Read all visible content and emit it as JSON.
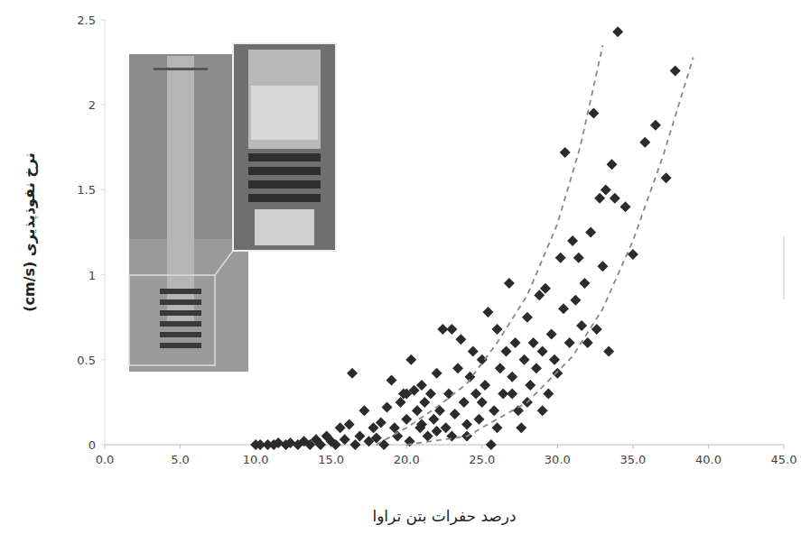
{
  "chart_data": {
    "type": "scatter",
    "x_label": "درصد حفرات بتن تراوا",
    "y_label": "نرخ نفوذپذیری (cm/s)",
    "xlim": [
      0,
      45
    ],
    "ylim": [
      0,
      2.5
    ],
    "xticks": [
      {
        "value": 0,
        "label": "0.0"
      },
      {
        "value": 5,
        "label": "5.0"
      },
      {
        "value": 10,
        "label": "10.0"
      },
      {
        "value": 15,
        "label": "15.0"
      },
      {
        "value": 20,
        "label": "20.0"
      },
      {
        "value": 25,
        "label": "25.0"
      },
      {
        "value": 30,
        "label": "30.0"
      },
      {
        "value": 35,
        "label": "35.0"
      },
      {
        "value": 40,
        "label": "40.0"
      },
      {
        "value": 45,
        "label": "45.0"
      }
    ],
    "yticks": [
      0,
      0.5,
      1,
      1.5,
      2,
      2.5
    ],
    "grid": false,
    "series": [
      {
        "type": "scatter",
        "marker": "diamond",
        "color": "#2b2b2b",
        "x": [
          10,
          10.3,
          10.8,
          11.2,
          11.5,
          12,
          12.3,
          12.8,
          13.2,
          13.6,
          14,
          14.3,
          14.7,
          15,
          15.3,
          15.6,
          15.9,
          16.2,
          16.4,
          16.6,
          16.9,
          17.2,
          17.5,
          17.8,
          18,
          18.3,
          18.5,
          18.7,
          19,
          19.2,
          19.4,
          19.6,
          19.8,
          20,
          20.2,
          20.3,
          20.5,
          20.7,
          20.9,
          21,
          21.2,
          21.4,
          21.6,
          21.8,
          22,
          22.2,
          22.4,
          22.6,
          22.8,
          23,
          23.2,
          23.4,
          23.6,
          23.8,
          24,
          24.2,
          24.4,
          24.6,
          24.8,
          25,
          25.2,
          25.4,
          25.6,
          25.8,
          26,
          26.2,
          26.4,
          26.6,
          26.8,
          27,
          27.2,
          27.4,
          27.6,
          27.8,
          28,
          28.2,
          28.4,
          28.6,
          28.8,
          29,
          29.2,
          29.4,
          29.6,
          29.8,
          30,
          30.2,
          30.4,
          30.5,
          30.8,
          31,
          31.2,
          31.4,
          31.6,
          31.8,
          32,
          32.2,
          32.4,
          32.6,
          32.8,
          33,
          33.2,
          33.4,
          33.6,
          33.8,
          34,
          34.5,
          35,
          35.8,
          36.5,
          37.2,
          37.8,
          25,
          26,
          24,
          23,
          22,
          27,
          28,
          29,
          21,
          20
        ],
        "values": [
          0,
          0,
          0,
          0,
          0.01,
          0,
          0.01,
          0,
          0.02,
          0,
          0.03,
          0,
          0.05,
          0.02,
          0,
          0.1,
          0.03,
          0.12,
          0.42,
          0,
          0.05,
          0.2,
          0.02,
          0.1,
          0.04,
          0.13,
          0,
          0.22,
          0.38,
          0.1,
          0.05,
          0.25,
          0.3,
          0.15,
          0.02,
          0.5,
          0.32,
          0.2,
          0.1,
          0.35,
          0.25,
          0.05,
          0.3,
          0.15,
          0.42,
          0.2,
          0.68,
          0.1,
          0.3,
          0.68,
          0.18,
          0.45,
          0.62,
          0.25,
          0.05,
          0.4,
          0.55,
          0.3,
          0.15,
          0.5,
          0.35,
          0.78,
          0,
          0.2,
          0.68,
          0.45,
          0.3,
          0.55,
          0.95,
          0.4,
          0.6,
          0.2,
          0.1,
          0.5,
          0.75,
          0.35,
          0.6,
          0.45,
          0.88,
          0.55,
          0.92,
          0.3,
          0.65,
          0.5,
          0.42,
          1.1,
          0.8,
          1.72,
          0.6,
          1.2,
          0.85,
          1.1,
          0.7,
          0.95,
          0.6,
          1.25,
          1.95,
          0.68,
          1.45,
          1.05,
          1.5,
          0.55,
          1.65,
          1.45,
          2.43,
          1.4,
          1.12,
          1.78,
          1.88,
          1.57,
          2.2,
          0.25,
          0.1,
          0.12,
          0.05,
          0.08,
          0.3,
          0.25,
          0.2,
          0.12,
          0.3
        ]
      },
      {
        "type": "line",
        "line_style": "dashed",
        "color": "#888888",
        "x": [
          18,
          20,
          22,
          24,
          26,
          28,
          30,
          31.5,
          33
        ],
        "values": [
          0,
          0.1,
          0.22,
          0.36,
          0.6,
          0.88,
          1.3,
          1.75,
          2.35
        ]
      },
      {
        "type": "line",
        "line_style": "dashed",
        "color": "#888888",
        "x": [
          20,
          24,
          28,
          31,
          33,
          35,
          37,
          39
        ],
        "values": [
          0,
          0.05,
          0.25,
          0.52,
          0.8,
          1.2,
          1.7,
          2.28
        ]
      }
    ]
  }
}
